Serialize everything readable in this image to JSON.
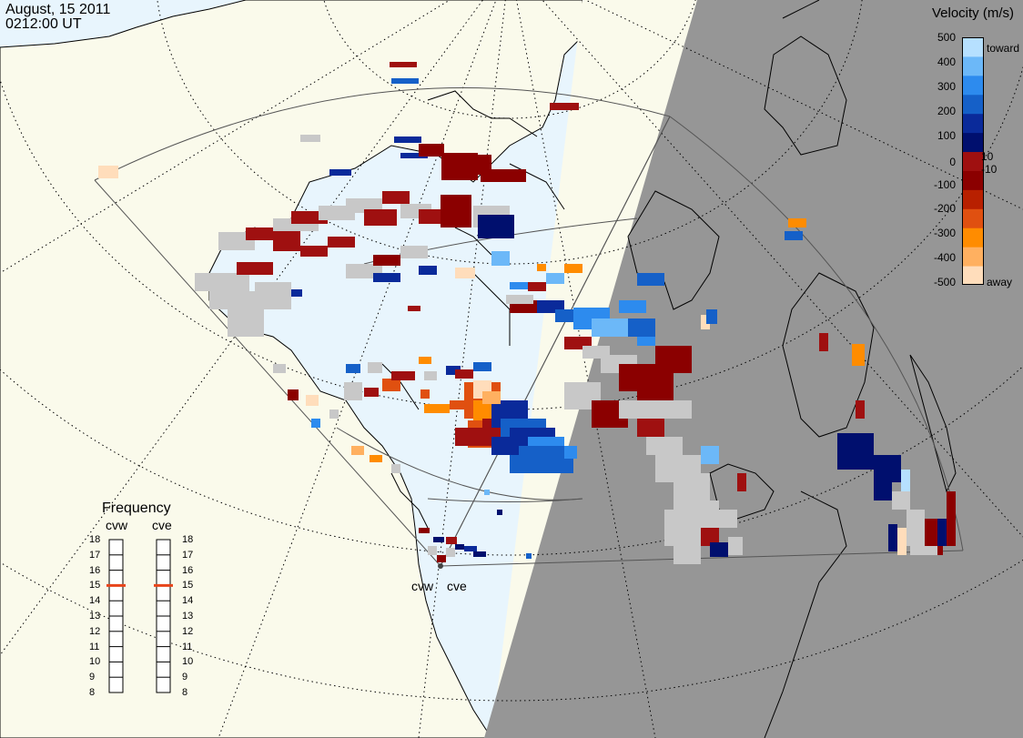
{
  "title": {
    "date": "August, 15 2011",
    "time": "0212:00 UT"
  },
  "colorbar": {
    "title": "Velocity (m/s)",
    "ticks": [
      "500",
      "400",
      "300",
      "200",
      "100",
      "10",
      "0",
      "-10",
      "-100",
      "-200",
      "-300",
      "-400",
      "-500"
    ],
    "toward_label": "toward",
    "away_label": "away",
    "colors": [
      "#FFDDBB",
      "#FFB060",
      "#FF8C00",
      "#E05010",
      "#B82000",
      "#8B0000",
      "#9F1010",
      "#000F6E",
      "#0A2A9A",
      "#1560C8",
      "#2D8BEE",
      "#6CB8F8",
      "#B6E0FF"
    ]
  },
  "frequency": {
    "title": "Frequency",
    "radars": [
      {
        "code": "cvw",
        "value_mhz": 15
      },
      {
        "code": "cve",
        "value_mhz": 15
      }
    ],
    "scale": [
      "18",
      "17",
      "16",
      "15",
      "14",
      "13",
      "12",
      "11",
      "10",
      "9",
      "8"
    ],
    "marker_color": "#E8441A"
  },
  "radar_sites": [
    {
      "label": "cvw"
    },
    {
      "label": "cve"
    }
  ],
  "map_colors": {
    "ocean": "#E8F5FD",
    "land_day": "#FAFAEB",
    "night": "#969696",
    "ground_scatter": "#C8C8C8"
  }
}
